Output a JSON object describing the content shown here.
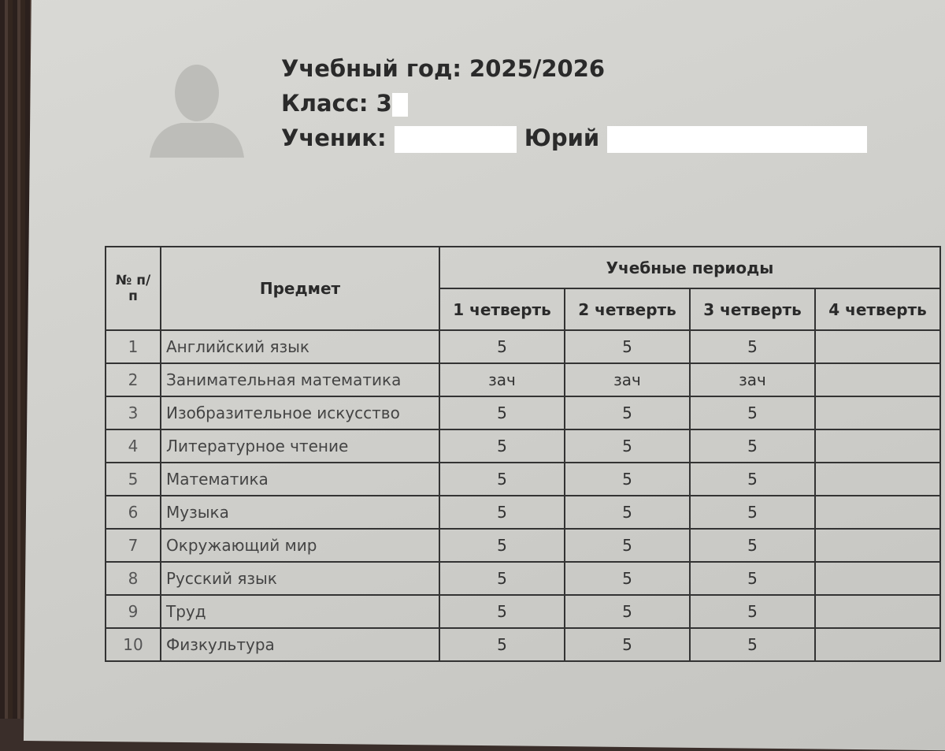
{
  "header": {
    "year_label": "Учебный год: 2025/2026",
    "class_label": "Класс: 3",
    "student_label": "Ученик:",
    "student_first_name": "Юрий"
  },
  "table": {
    "col_num": "№ п/п",
    "col_subject": "Предмет",
    "col_periods": "Учебные периоды",
    "periods": [
      "1 четверть",
      "2 четверть",
      "3 четверть",
      "4 четверть"
    ],
    "rows": [
      {
        "n": "1",
        "subject": "Английский язык",
        "grades": [
          "5",
          "5",
          "5",
          ""
        ]
      },
      {
        "n": "2",
        "subject": "Занимательная математика",
        "grades": [
          "зач",
          "зач",
          "зач",
          ""
        ]
      },
      {
        "n": "3",
        "subject": "Изобразительное искусство",
        "grades": [
          "5",
          "5",
          "5",
          ""
        ]
      },
      {
        "n": "4",
        "subject": "Литературное чтение",
        "grades": [
          "5",
          "5",
          "5",
          ""
        ]
      },
      {
        "n": "5",
        "subject": "Математика",
        "grades": [
          "5",
          "5",
          "5",
          ""
        ]
      },
      {
        "n": "6",
        "subject": "Музыка",
        "grades": [
          "5",
          "5",
          "5",
          ""
        ]
      },
      {
        "n": "7",
        "subject": "Окружающий мир",
        "grades": [
          "5",
          "5",
          "5",
          ""
        ]
      },
      {
        "n": "8",
        "subject": "Русский язык",
        "grades": [
          "5",
          "5",
          "5",
          ""
        ]
      },
      {
        "n": "9",
        "subject": "Труд",
        "grades": [
          "5",
          "5",
          "5",
          ""
        ]
      },
      {
        "n": "10",
        "subject": "Физкультура",
        "grades": [
          "5",
          "5",
          "5",
          ""
        ]
      }
    ]
  }
}
